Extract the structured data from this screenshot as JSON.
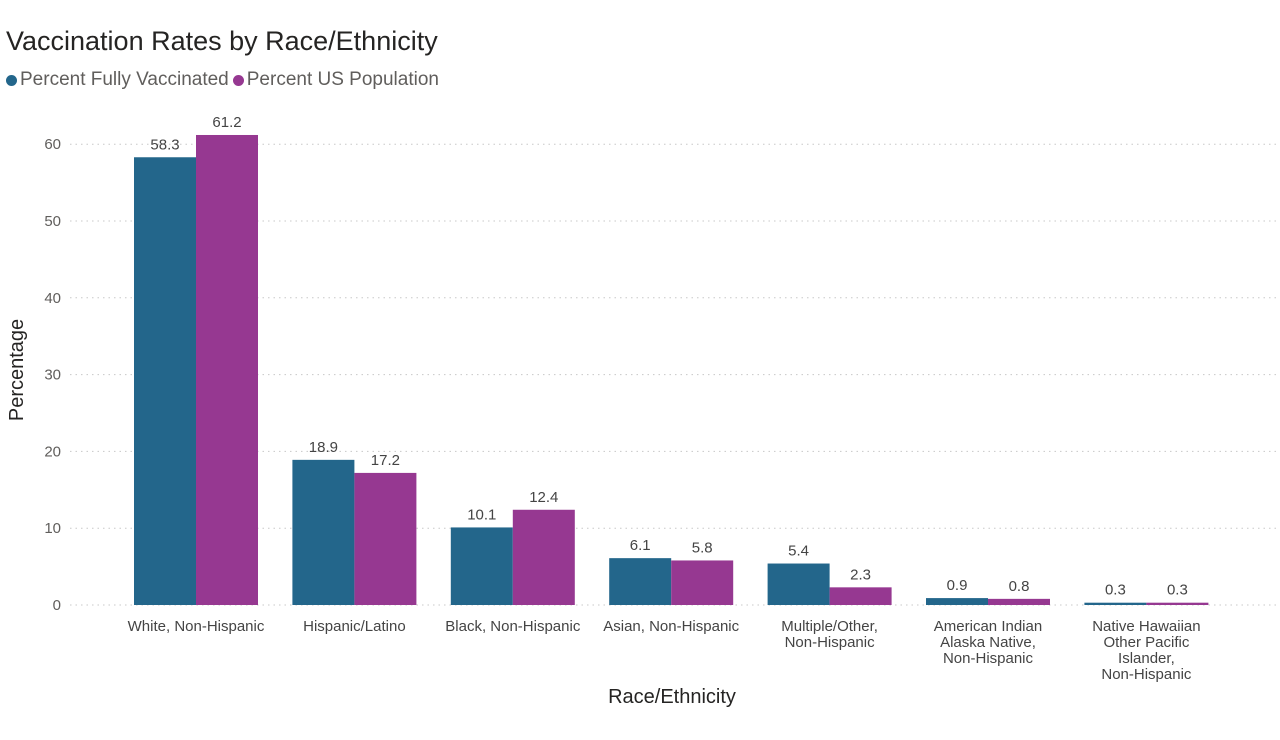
{
  "chart_data": {
    "type": "bar",
    "title": "Vaccination Rates by Race/Ethnicity",
    "xlabel": "Race/Ethnicity",
    "ylabel": "Percentage",
    "ylim": [
      0,
      65
    ],
    "yticks": [
      0,
      10,
      20,
      30,
      40,
      50,
      60
    ],
    "grid": true,
    "legend_position": "top-left",
    "categories": [
      [
        "White, Non-Hispanic"
      ],
      [
        "Hispanic/Latino"
      ],
      [
        "Black, Non-Hispanic"
      ],
      [
        "Asian, Non-Hispanic"
      ],
      [
        "Multiple/Other,",
        "Non-Hispanic"
      ],
      [
        "American Indian",
        "Alaska Native,",
        "Non-Hispanic"
      ],
      [
        "Native Hawaiian",
        "Other Pacific",
        "Islander,",
        "Non-Hispanic"
      ]
    ],
    "series": [
      {
        "name": "Percent Fully Vaccinated",
        "color": "#23668b",
        "values": [
          58.3,
          18.9,
          10.1,
          6.1,
          5.4,
          0.9,
          0.3
        ]
      },
      {
        "name": "Percent US Population",
        "color": "#963891",
        "values": [
          61.2,
          17.2,
          12.4,
          5.8,
          2.3,
          0.8,
          0.3
        ]
      }
    ]
  }
}
